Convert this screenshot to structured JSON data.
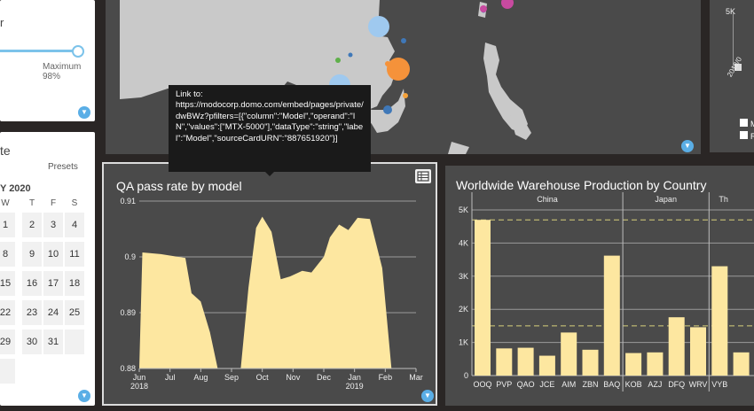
{
  "slider_card": {
    "title_fragment": "r",
    "max_label": "Maximum",
    "max_value": "98%",
    "slider_position": 1.0
  },
  "date_card": {
    "title_fragment": "te",
    "presets_label": "Presets",
    "month_label": "Y 2020",
    "weekdays": [
      "W",
      "T",
      "F",
      "S"
    ],
    "days": [
      [
        "1",
        "2",
        "3",
        "4"
      ],
      [
        "8",
        "9",
        "10",
        "11"
      ],
      [
        "15",
        "16",
        "17",
        "18"
      ],
      [
        "22",
        "23",
        "24",
        "25"
      ],
      [
        "29",
        "30",
        "31",
        ""
      ]
    ]
  },
  "tooltip": {
    "text": "Link to:\nhttps://modocorp.domo.com/embed/pages/private/dwBWz?pfilters=[{\"column\":\"Model\",\"operand\":\"IN\",\"values\":[\"MTX-5000\"],\"dataType\":\"string\",\"label\":\"Model\",\"sourceCardURN\":\"887651920\"}]"
  },
  "right_top_card": {
    "tick_label": "5K",
    "legend_items": [
      {
        "label": "M",
        "color": "#ffffff"
      },
      {
        "label": "R",
        "color": "#ffffff"
      }
    ],
    "x_tick_fragment": "2018/0"
  },
  "chart_data": [
    {
      "type": "area",
      "title": "QA pass rate by model",
      "color": "#fde7a0",
      "ylim": [
        0.88,
        0.91
      ],
      "y_ticks": [
        {
          "value": 0.88,
          "label": "0.88"
        },
        {
          "value": 0.89,
          "label": "0.89"
        },
        {
          "value": 0.9,
          "label": "0.9"
        },
        {
          "value": 0.91,
          "label": "0.91"
        }
      ],
      "xlim": [
        0,
        9
      ],
      "x_ticks": [
        {
          "pos": 0.0,
          "label": "Jun",
          "sub": "2018"
        },
        {
          "pos": 1.0,
          "label": "Jul",
          "sub": ""
        },
        {
          "pos": 2.0,
          "label": "Aug",
          "sub": ""
        },
        {
          "pos": 3.0,
          "label": "Sep",
          "sub": ""
        },
        {
          "pos": 4.0,
          "label": "Oct",
          "sub": ""
        },
        {
          "pos": 5.0,
          "label": "Nov",
          "sub": ""
        },
        {
          "pos": 6.0,
          "label": "Dec",
          "sub": ""
        },
        {
          "pos": 7.0,
          "label": "Jan",
          "sub": "2019"
        },
        {
          "pos": 8.0,
          "label": "Feb",
          "sub": ""
        },
        {
          "pos": 9.0,
          "label": "Mar",
          "sub": ""
        }
      ],
      "segments": [
        {
          "x": [
            0.0,
            0.1,
            0.7,
            1.5,
            1.7,
            2.0,
            2.3,
            2.55
          ],
          "y": [
            0.88,
            0.9008,
            0.9005,
            0.8998,
            0.8935,
            0.892,
            0.8865,
            0.88
          ]
        },
        {
          "x": [
            3.3,
            3.55,
            3.8,
            4.0,
            4.3,
            4.6,
            4.9,
            5.3,
            5.6,
            6.0,
            6.2,
            6.5,
            6.8,
            7.1,
            7.5,
            7.9,
            8.2
          ],
          "y": [
            0.88,
            0.8945,
            0.9052,
            0.9072,
            0.9045,
            0.896,
            0.8965,
            0.8975,
            0.8972,
            0.9,
            0.9035,
            0.9058,
            0.9048,
            0.907,
            0.9068,
            0.898,
            0.88
          ]
        }
      ]
    },
    {
      "type": "bar",
      "title": "Worldwide Warehouse Production by Country",
      "ylim": [
        0,
        5000
      ],
      "y_ticks": [
        {
          "value": 0,
          "label": "0"
        },
        {
          "value": 1000,
          "label": "1K"
        },
        {
          "value": 2000,
          "label": "2K"
        },
        {
          "value": 3000,
          "label": "3K"
        },
        {
          "value": 4000,
          "label": "4K"
        },
        {
          "value": 5000,
          "label": "5K"
        }
      ],
      "reference_lines": [
        1500,
        4700
      ],
      "color": "#fde7a0",
      "groups": [
        {
          "name": "China",
          "bars": [
            {
              "label": "OOQ",
              "value": 4700
            },
            {
              "label": "PVP",
              "value": 820
            },
            {
              "label": "QAO",
              "value": 840
            },
            {
              "label": "JCE",
              "value": 600
            },
            {
              "label": "AIM",
              "value": 1300
            },
            {
              "label": "ZBN",
              "value": 780
            },
            {
              "label": "BAQ",
              "value": 3620
            }
          ]
        },
        {
          "name": "Japan",
          "bars": [
            {
              "label": "KOB",
              "value": 680
            },
            {
              "label": "AZJ",
              "value": 700
            },
            {
              "label": "DFQ",
              "value": 1760
            },
            {
              "label": "WRV",
              "value": 1460
            }
          ]
        },
        {
          "name": "Th",
          "bars": [
            {
              "label": "VYB",
              "value": 3300
            },
            {
              "label": "",
              "value": 700
            }
          ]
        }
      ]
    }
  ]
}
